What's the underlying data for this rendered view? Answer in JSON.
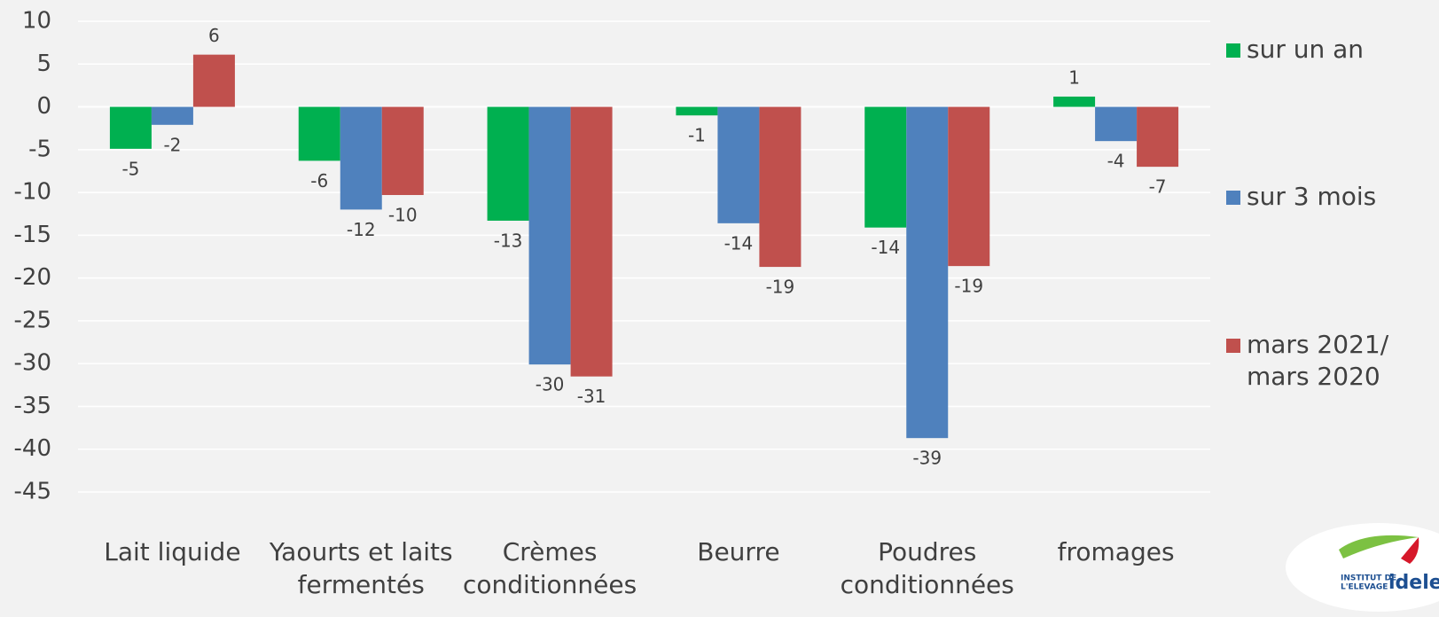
{
  "chart_data": {
    "type": "bar",
    "categories": [
      "Lait liquide",
      "Yaourts et laits\nfermentés",
      "Crèmes\nconditionnées",
      "Beurre",
      "Poudres\nconditionnées",
      "fromages"
    ],
    "series": [
      {
        "name": "sur un an",
        "color": "#00b050",
        "values": [
          -4.9,
          -6.3,
          -13.3,
          -1,
          -14.1,
          1.2
        ],
        "value_labels": [
          "-5",
          "-6",
          "-13",
          "-1",
          "-14",
          "1"
        ]
      },
      {
        "name": "sur 3 mois",
        "color": "#4f81bd",
        "values": [
          -2.1,
          -12,
          -30.1,
          -13.6,
          -38.7,
          -4
        ],
        "value_labels": [
          "-2",
          "-12",
          "-30",
          "-14",
          "-39",
          "-4"
        ]
      },
      {
        "name": "mars 2021/\nmars 2020",
        "color": "#c0504d",
        "values": [
          6.1,
          -10.3,
          -31.5,
          -18.7,
          -18.6,
          -7
        ],
        "value_labels": [
          "6",
          "-10",
          "-31",
          "-19",
          "-19",
          "-7"
        ]
      }
    ],
    "ylim": [
      -45,
      10
    ],
    "yticks": [
      -45,
      -40,
      -35,
      -30,
      -25,
      -20,
      -15,
      -10,
      -5,
      0,
      5,
      10
    ],
    "grid": true,
    "legend": "right"
  },
  "logo": {
    "line1": "INSTITUT DE",
    "line2": "L'ELEVAGE",
    "name": "idele"
  }
}
